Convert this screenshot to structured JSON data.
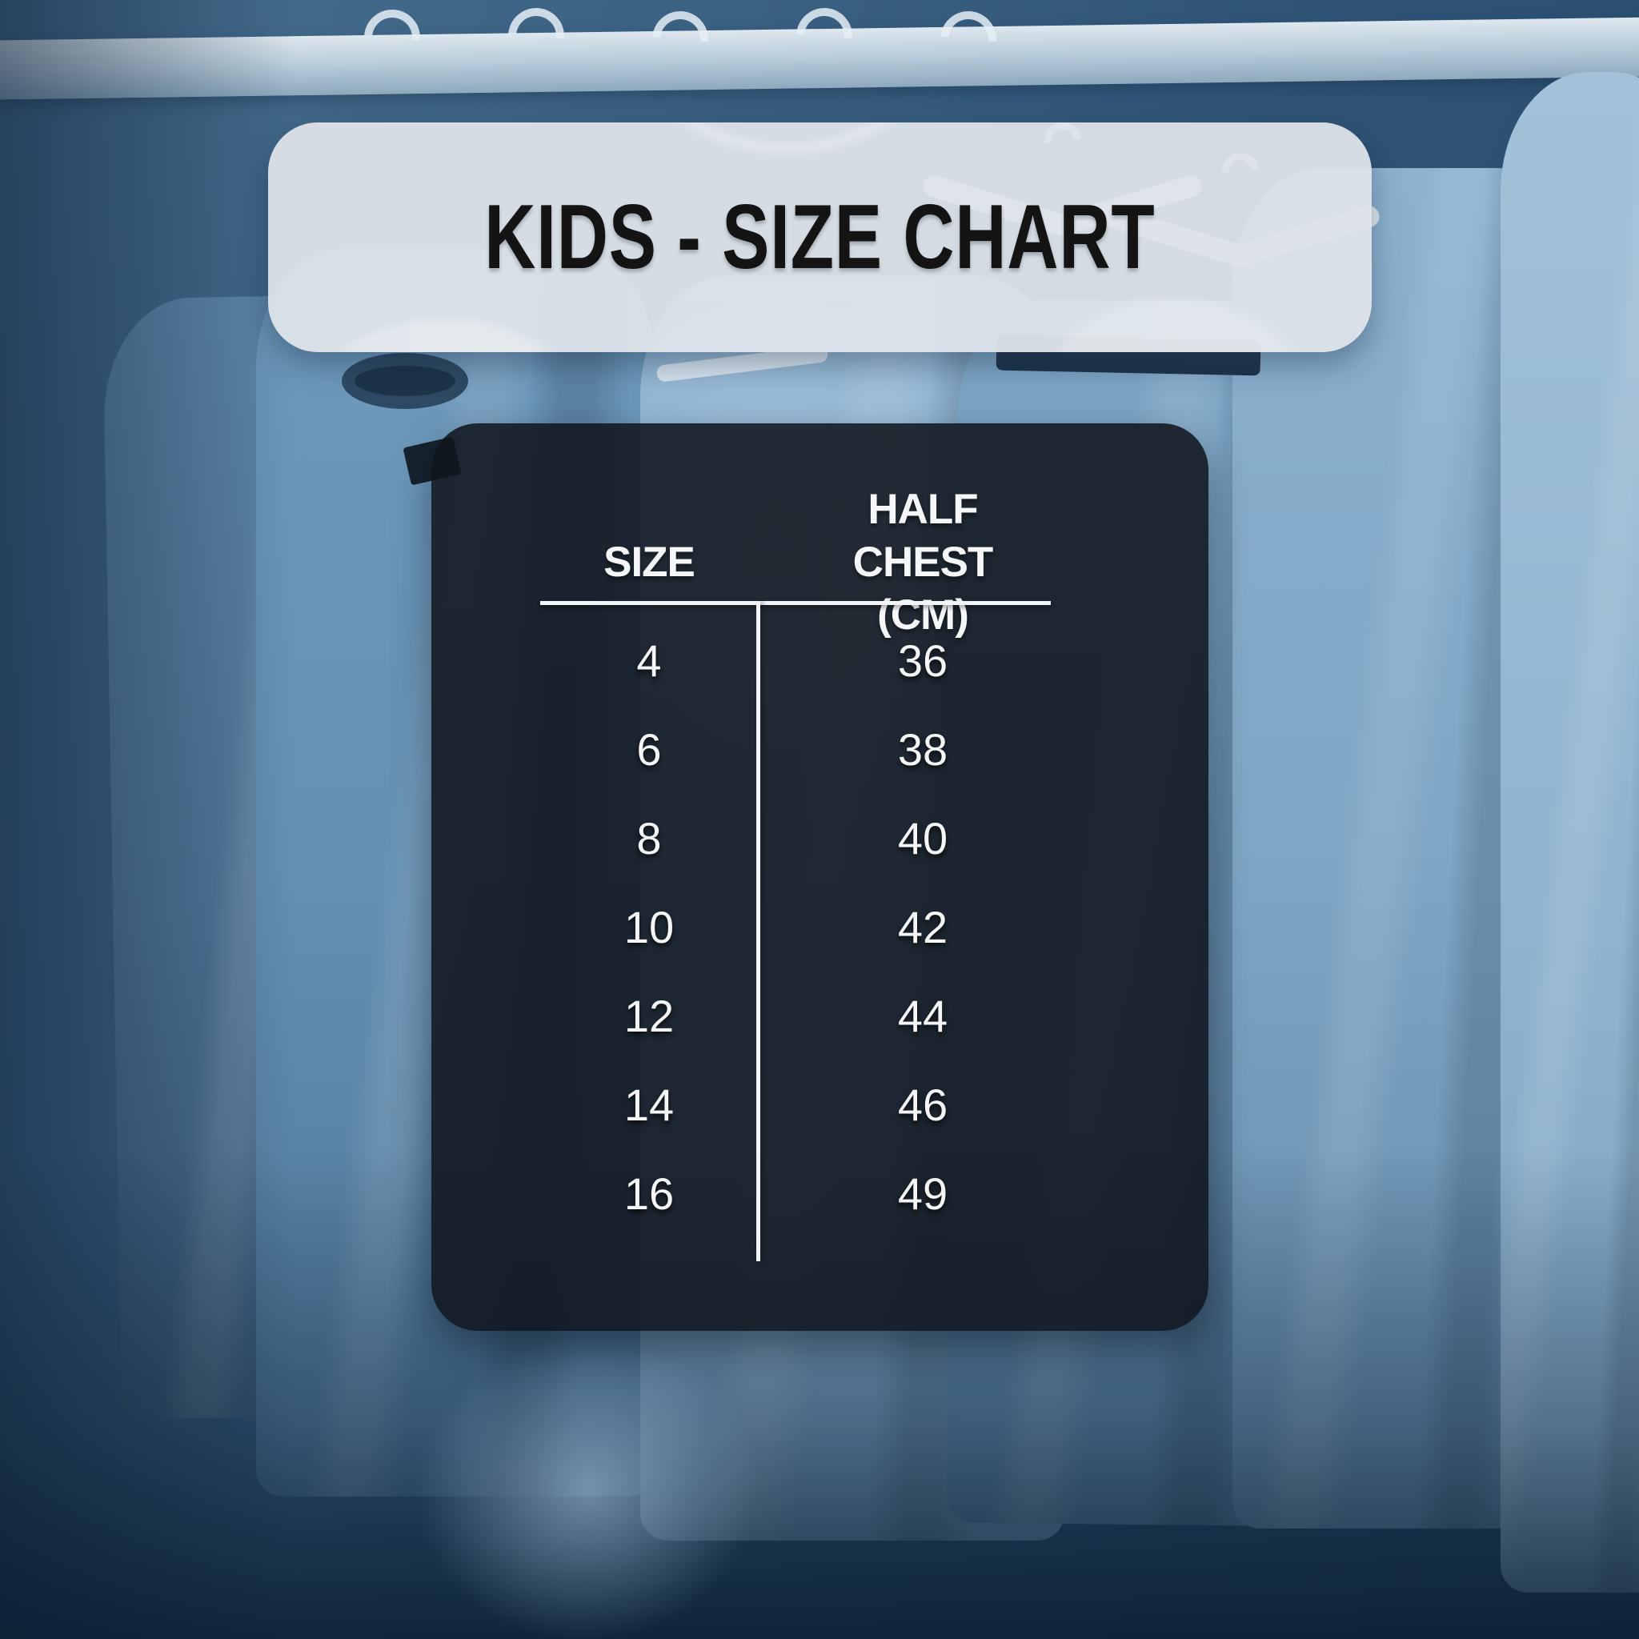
{
  "title": "KIDS - SIZE CHART",
  "chart_data": {
    "type": "table",
    "title": "KIDS - SIZE CHART",
    "columns": [
      "SIZE",
      "HALF CHEST (CM)"
    ],
    "column_lines": {
      "size": "SIZE",
      "half_chest_line1": "HALF CHEST",
      "half_chest_line2": "(CM)"
    },
    "rows": [
      [
        "4",
        "36"
      ],
      [
        "6",
        "38"
      ],
      [
        "8",
        "40"
      ],
      [
        "10",
        "42"
      ],
      [
        "12",
        "44"
      ],
      [
        "14",
        "46"
      ],
      [
        "16",
        "49"
      ]
    ]
  },
  "colors": {
    "banner_bg": "#dde3e9",
    "title_text": "#141414",
    "panel_bg": "#10161e",
    "table_text": "#f4f6f8",
    "rule_line": "#f2f5f7",
    "background_dark_blue": "#254868",
    "background_light_blue": "#8fb2cd",
    "shirt_blue": "#6f9abc"
  },
  "background": {
    "description_items": [
      "clothes-rod",
      "hanger-icon",
      "tshirt-shape",
      "tshirt-collar",
      "care-tag"
    ]
  }
}
